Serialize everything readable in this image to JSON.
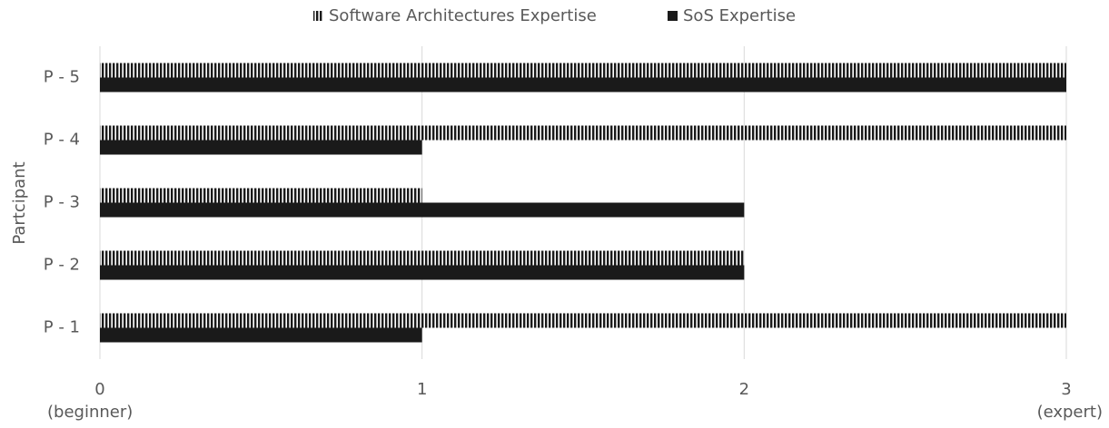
{
  "chart_data": {
    "type": "hbar",
    "ylabel": "Partcipant",
    "categories": [
      "P - 1",
      "P - 2",
      "P - 3",
      "P - 4",
      "P - 5"
    ],
    "series": [
      {
        "name": "Software Architectures Expertise",
        "color": "#1a1a1a",
        "pattern": "vertical-stripes",
        "values": [
          3,
          2,
          1,
          3,
          3
        ]
      },
      {
        "name": "SoS Expertise",
        "color": "#1a1a1a",
        "values": [
          1,
          2,
          2,
          1,
          3
        ]
      }
    ],
    "xlim": [
      0,
      3
    ],
    "xticks": [
      0,
      1,
      2,
      3
    ],
    "annotations": [
      {
        "text": "(beginner)",
        "x": 0
      },
      {
        "text": "(expert)",
        "x": 3
      }
    ],
    "grid": true,
    "legend": "top"
  }
}
